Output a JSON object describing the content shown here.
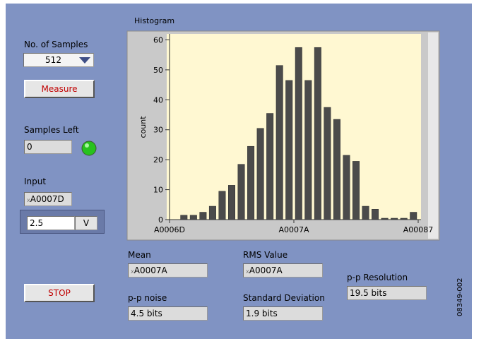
{
  "chart_data": {
    "type": "histogram",
    "title": "Histogram",
    "y_label": "count",
    "bins": [
      110,
      111,
      112,
      113,
      114,
      115,
      116,
      117,
      118,
      119,
      120,
      121,
      122,
      123,
      124,
      125,
      126,
      127,
      128,
      129,
      130,
      131,
      132,
      133,
      134,
      135
    ],
    "values": [
      1,
      1,
      2,
      4,
      9,
      11,
      18,
      24,
      30,
      35,
      51,
      46,
      57,
      46,
      57,
      37,
      33,
      21,
      19,
      4,
      3,
      0,
      0,
      0,
      2
    ],
    "color": "#4b4b4b",
    "xlim": [
      109,
      135
    ],
    "xticks": [
      {
        "value": 109,
        "label": "A0006D"
      },
      {
        "value": 122,
        "label": "A0007A"
      },
      {
        "value": 135,
        "label": "A00087"
      }
    ],
    "ylim": [
      0,
      62
    ],
    "yticks": [
      0,
      10,
      20,
      30,
      40,
      50,
      60
    ]
  },
  "controls": {
    "samples": {
      "label": "No. of Samples",
      "value": "512"
    },
    "measure": {
      "label": "Measure"
    },
    "samples_left": {
      "label": "Samples Left",
      "value": "0"
    },
    "input": {
      "label": "Input",
      "radix": "x",
      "value": "A0007D",
      "voltage": "2.5",
      "unit": "V"
    },
    "stop": {
      "label": "STOP"
    }
  },
  "results": {
    "mean": {
      "label": "Mean",
      "radix": "x",
      "value": "A0007A"
    },
    "rms": {
      "label": "RMS Value",
      "radix": "x",
      "value": "A0007A"
    },
    "pp_resolution": {
      "label": "p-p Resolution",
      "value": "19.5 bits"
    },
    "pp_noise": {
      "label": "p-p noise",
      "value": "4.5 bits"
    },
    "std_dev": {
      "label": "Standard Deviation",
      "value": "1.9 bits"
    }
  },
  "figure_id": "08349-002"
}
